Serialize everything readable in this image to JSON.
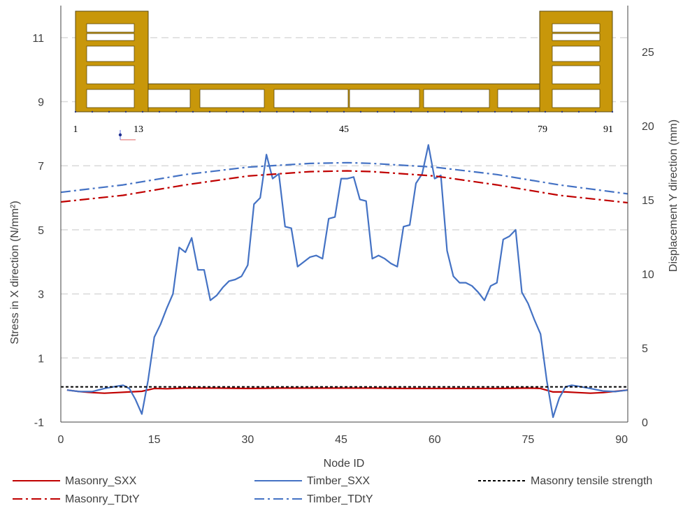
{
  "chart_data": {
    "type": "line",
    "xlabel": "Node ID",
    "ylabel_left": "Stress in X direction (N/mm²)",
    "ylabel_right": "Displacement Y direction (mm)",
    "xlim": [
      0,
      91
    ],
    "ylim_left": [
      -1,
      12
    ],
    "ylim_right": [
      0,
      28.1
    ],
    "x_ticks": [
      0,
      15,
      30,
      45,
      60,
      75,
      90
    ],
    "y_ticks_left": [
      -1,
      1,
      3,
      5,
      7,
      9,
      11
    ],
    "y_ticks_right": [
      0,
      5,
      10,
      15,
      20,
      25
    ],
    "grid": "horizontal dashed",
    "legend_position": "bottom",
    "series": [
      {
        "name": "Masonry_SXX",
        "axis": "left",
        "color": "#c00000",
        "style": "solid",
        "x": [
          1,
          3,
          5,
          7,
          9,
          11,
          13,
          15,
          17,
          20,
          25,
          30,
          35,
          40,
          45,
          50,
          55,
          60,
          65,
          70,
          75,
          77,
          79,
          81,
          83,
          85,
          87,
          89,
          91
        ],
        "y": [
          0.0,
          -0.05,
          -0.08,
          -0.1,
          -0.08,
          -0.06,
          -0.04,
          0.05,
          0.04,
          0.06,
          0.06,
          0.05,
          0.06,
          0.06,
          0.06,
          0.06,
          0.05,
          0.05,
          0.05,
          0.05,
          0.06,
          0.05,
          -0.06,
          -0.06,
          -0.08,
          -0.1,
          -0.08,
          -0.04,
          0.0
        ]
      },
      {
        "name": "Timber_SXX",
        "axis": "left",
        "color": "#4472c4",
        "style": "solid",
        "x": [
          1,
          3,
          5,
          7,
          9,
          10,
          11,
          12,
          13,
          14,
          15,
          16,
          17,
          18,
          19,
          20,
          21,
          22,
          23,
          24,
          25,
          26,
          27,
          28,
          29,
          30,
          31,
          32,
          33,
          34,
          35,
          36,
          37,
          38,
          39,
          40,
          41,
          42,
          43,
          44,
          45,
          46,
          47,
          48,
          49,
          50,
          51,
          52,
          53,
          54,
          55,
          56,
          57,
          58,
          59,
          60,
          61,
          62,
          63,
          64,
          65,
          66,
          67,
          68,
          69,
          70,
          71,
          72,
          73,
          74,
          75,
          76,
          77,
          78,
          79,
          80,
          81,
          82,
          83,
          85,
          87,
          89,
          91
        ],
        "y": [
          0.0,
          -0.05,
          -0.05,
          0.05,
          0.12,
          0.15,
          0.05,
          -0.3,
          -0.75,
          0.3,
          1.65,
          2.05,
          2.55,
          3.0,
          4.45,
          4.3,
          4.75,
          3.75,
          3.75,
          2.8,
          2.95,
          3.2,
          3.4,
          3.45,
          3.55,
          3.9,
          5.8,
          6.0,
          7.35,
          6.6,
          6.75,
          5.1,
          5.05,
          3.85,
          4.0,
          4.15,
          4.2,
          4.1,
          5.35,
          5.4,
          6.6,
          6.6,
          6.65,
          5.95,
          5.9,
          4.1,
          4.2,
          4.1,
          3.95,
          3.85,
          5.1,
          5.15,
          6.45,
          6.75,
          7.65,
          6.6,
          6.7,
          4.35,
          3.55,
          3.35,
          3.35,
          3.25,
          3.05,
          2.8,
          3.25,
          3.35,
          4.7,
          4.8,
          5.0,
          3.05,
          2.7,
          2.2,
          1.75,
          0.3,
          -0.85,
          -0.25,
          0.1,
          0.15,
          0.12,
          0.05,
          -0.03,
          -0.05,
          0.0
        ]
      },
      {
        "name": "Masonry tensile strength",
        "axis": "left",
        "color": "#000000",
        "style": "dashed",
        "x": [
          0,
          91
        ],
        "y": [
          0.1,
          0.1
        ]
      },
      {
        "name": "Masonry_TDtY",
        "axis": "right",
        "color": "#c00000",
        "style": "dashdot",
        "x": [
          0,
          10,
          20,
          30,
          40,
          46,
          50,
          60,
          70,
          80,
          91
        ],
        "y": [
          14.85,
          15.3,
          16.0,
          16.6,
          16.9,
          16.95,
          16.9,
          16.6,
          16.0,
          15.3,
          14.8
        ]
      },
      {
        "name": "Timber_TDtY",
        "axis": "right",
        "color": "#4472c4",
        "style": "dashdot",
        "x": [
          0,
          10,
          20,
          30,
          40,
          46,
          50,
          60,
          70,
          80,
          91
        ],
        "y": [
          15.5,
          16.0,
          16.7,
          17.2,
          17.45,
          17.5,
          17.45,
          17.2,
          16.7,
          16.0,
          15.4
        ]
      }
    ],
    "inset_node_labels": [
      "1",
      "13",
      "45",
      "79",
      "91"
    ]
  }
}
